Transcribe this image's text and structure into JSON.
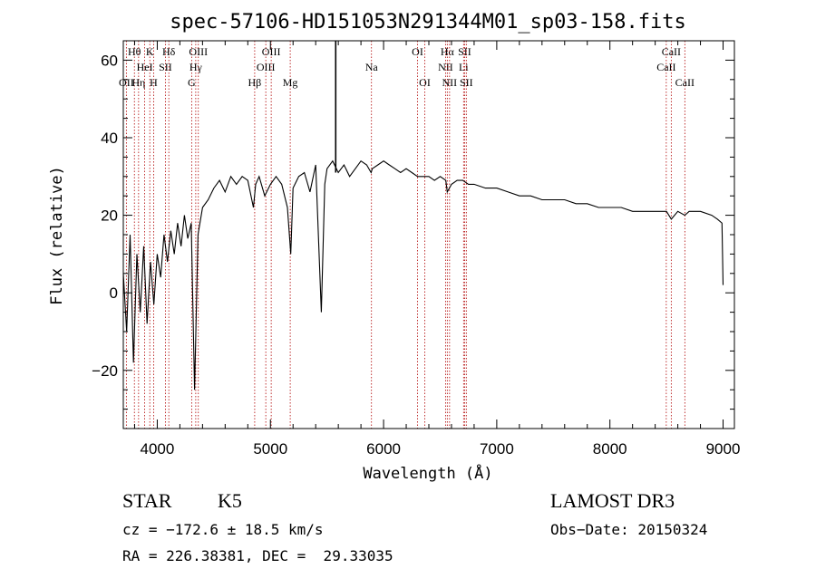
{
  "chart_data": {
    "type": "line",
    "title": "spec-57106-HD151053N291344M01_sp03-158.fits",
    "xlabel": "Wavelength (Å)",
    "ylabel": "Flux (relative)",
    "xlim": [
      3700,
      9100
    ],
    "ylim": [
      -35,
      65
    ],
    "xticks": [
      4000,
      5000,
      6000,
      7000,
      8000,
      9000
    ],
    "yticks": [
      -20,
      0,
      20,
      40,
      60
    ],
    "grid": false,
    "series": [
      {
        "x": [
          3700,
          3730,
          3760,
          3790,
          3820,
          3850,
          3880,
          3910,
          3940,
          3970,
          4000,
          4030,
          4060,
          4090,
          4120,
          4150,
          4180,
          4210,
          4240,
          4270,
          4300,
          4330,
          4360,
          4400,
          4450,
          4500,
          4550,
          4600,
          4650,
          4700,
          4750,
          4800,
          4850,
          4870,
          4900,
          4950,
          5000,
          5050,
          5100,
          5150,
          5180,
          5200,
          5250,
          5300,
          5350,
          5400,
          5450,
          5480,
          5500,
          5550,
          5600,
          5650,
          5700,
          5750,
          5800,
          5850,
          5890,
          5900,
          5950,
          6000,
          6050,
          6100,
          6150,
          6200,
          6250,
          6300,
          6350,
          6400,
          6450,
          6500,
          6550,
          6563,
          6600,
          6650,
          6700,
          6750,
          6800,
          6900,
          7000,
          7100,
          7200,
          7300,
          7400,
          7500,
          7600,
          7700,
          7800,
          7900,
          8000,
          8100,
          8200,
          8300,
          8400,
          8500,
          8542,
          8600,
          8662,
          8700,
          8800,
          8900,
          8950,
          8990,
          9000
        ],
        "y": [
          5,
          -10,
          15,
          -18,
          10,
          -5,
          12,
          -8,
          8,
          -3,
          10,
          4,
          15,
          8,
          16,
          10,
          18,
          12,
          20,
          14,
          18,
          -25,
          15,
          22,
          24,
          27,
          29,
          26,
          30,
          28,
          30,
          29,
          22,
          28,
          30,
          25,
          28,
          30,
          28,
          22,
          10,
          27,
          30,
          31,
          26,
          33,
          -5,
          28,
          32,
          34,
          31,
          33,
          30,
          32,
          34,
          33,
          31,
          32,
          33,
          34,
          33,
          32,
          31,
          32,
          31,
          30,
          30,
          30,
          29,
          30,
          29,
          26,
          28,
          29,
          29,
          28,
          28,
          27,
          27,
          26,
          25,
          25,
          24,
          24,
          24,
          23,
          23,
          22,
          22,
          22,
          21,
          21,
          21,
          21,
          19,
          21,
          20,
          21,
          21,
          20,
          19,
          18,
          2
        ]
      }
    ],
    "spectral_lines": [
      {
        "label": "OII",
        "x": 3727,
        "row": 3
      },
      {
        "label": "Hθ",
        "x": 3798,
        "row": 1
      },
      {
        "label": "Hη",
        "x": 3835,
        "row": 3
      },
      {
        "label": "HeI",
        "x": 3889,
        "row": 2
      },
      {
        "label": "K",
        "x": 3934,
        "row": 1
      },
      {
        "label": "H",
        "x": 3968,
        "row": 3
      },
      {
        "label": "SII",
        "x": 4072,
        "row": 2
      },
      {
        "label": "Hδ",
        "x": 4102,
        "row": 1
      },
      {
        "label": "G",
        "x": 4304,
        "row": 3
      },
      {
        "label": "Hγ",
        "x": 4340,
        "row": 2
      },
      {
        "label": "OIII",
        "x": 4363,
        "row": 1
      },
      {
        "label": "Hβ",
        "x": 4861,
        "row": 3
      },
      {
        "label": "OIII",
        "x": 4959,
        "row": 2
      },
      {
        "label": "OIII",
        "x": 5007,
        "row": 1
      },
      {
        "label": "Mg",
        "x": 5175,
        "row": 3
      },
      {
        "label": "Na",
        "x": 5893,
        "row": 2
      },
      {
        "label": "OI",
        "x": 6300,
        "row": 1
      },
      {
        "label": "OI",
        "x": 6364,
        "row": 3
      },
      {
        "label": "NII",
        "x": 6548,
        "row": 2
      },
      {
        "label": "Hα",
        "x": 6563,
        "row": 1
      },
      {
        "label": "NII",
        "x": 6583,
        "row": 3
      },
      {
        "label": "Li",
        "x": 6707,
        "row": 2
      },
      {
        "label": "SII",
        "x": 6716,
        "row": 1
      },
      {
        "label": "SII",
        "x": 6731,
        "row": 3
      },
      {
        "label": "CaII",
        "x": 8498,
        "row": 2
      },
      {
        "label": "CaII",
        "x": 8542,
        "row": 1
      },
      {
        "label": "CaII",
        "x": 8662,
        "row": 3
      }
    ]
  },
  "info": {
    "object_class": "STAR",
    "subclass": "K5",
    "survey": "LAMOST DR3",
    "cz": "cz = −172.6 ± 18.5 km/s",
    "obs_date": "Obs−Date: 20150324",
    "coords": "RA = 226.38381, DEC =  29.33035"
  },
  "colors": {
    "spectrum": "#000000",
    "line_markers": "#b00000",
    "axis": "#000000"
  }
}
